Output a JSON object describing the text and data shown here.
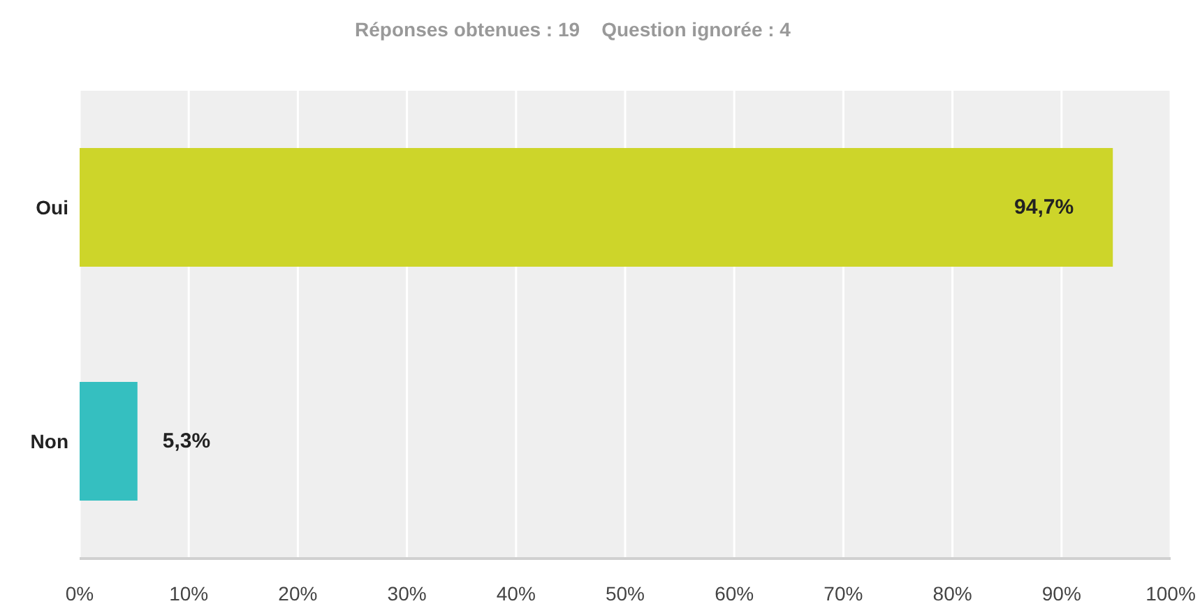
{
  "chart_data": {
    "type": "bar",
    "orientation": "horizontal",
    "subtitle": "Réponses obtenues : 19    Question ignorée : 4",
    "categories": [
      "Oui",
      "Non"
    ],
    "values": [
      94.7,
      5.3
    ],
    "colors": [
      "#cdd52a",
      "#35bfc0"
    ],
    "value_labels": [
      "94,7%",
      "5,3%"
    ],
    "xlim": [
      0,
      100
    ],
    "xticks": [
      {
        "value": 0,
        "label": "0%"
      },
      {
        "value": 10,
        "label": "10%"
      },
      {
        "value": 20,
        "label": "20%"
      },
      {
        "value": 30,
        "label": "30%"
      },
      {
        "value": 40,
        "label": "40%"
      },
      {
        "value": 50,
        "label": "50%"
      },
      {
        "value": 60,
        "label": "60%"
      },
      {
        "value": 70,
        "label": "70%"
      },
      {
        "value": 80,
        "label": "80%"
      },
      {
        "value": 90,
        "label": "90%"
      },
      {
        "value": 100,
        "label": "100%"
      }
    ],
    "grid": "x",
    "legend": false
  }
}
